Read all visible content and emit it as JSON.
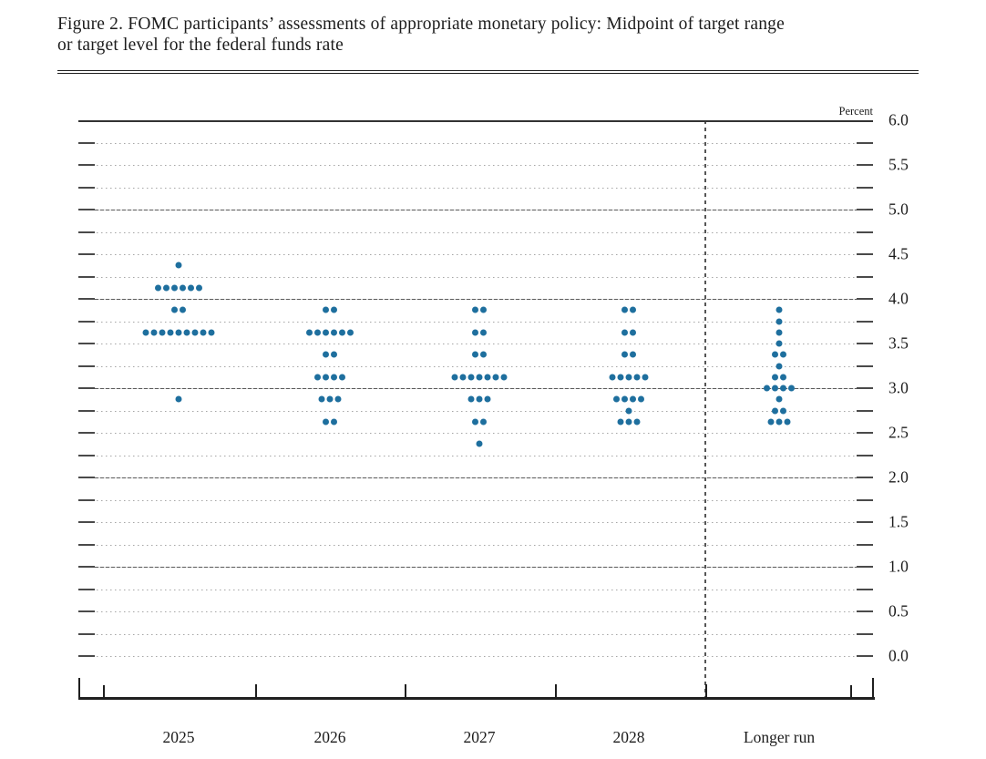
{
  "figure": {
    "title_line1": "Figure 2. FOMC participants’ assessments of appropriate monetary policy: Midpoint of target range",
    "title_line2": "or target level for the federal funds rate"
  },
  "chart_data": {
    "type": "scatter",
    "subtype": "fomc-dot-plot",
    "title": "Figure 2. FOMC participants’ assessments of appropriate monetary policy: Midpoint of target range or target level for the federal funds rate",
    "unit_label": "Percent",
    "categories": [
      "2025",
      "2026",
      "2027",
      "2028",
      "Longer run"
    ],
    "ylim": [
      0.0,
      6.0
    ],
    "y_major_step": 0.5,
    "y_minor_step": 0.25,
    "y_tick_labels": [
      "6.0",
      "5.5",
      "5.0",
      "4.5",
      "4.0",
      "3.5",
      "3.0",
      "2.5",
      "2.0",
      "1.5",
      "1.0",
      "0.5",
      "0.0"
    ],
    "solid_gridline_values": [
      6.0,
      5.0,
      4.0,
      3.0,
      2.0,
      1.0
    ],
    "grid": true,
    "legend": null,
    "separator_before_category": "Longer run",
    "dot_color": "#1e6f9e",
    "series": [
      {
        "category": "2025",
        "dots": [
          {
            "rate": 4.375,
            "count": 1
          },
          {
            "rate": 4.125,
            "count": 6
          },
          {
            "rate": 3.875,
            "count": 2
          },
          {
            "rate": 3.625,
            "count": 9
          },
          {
            "rate": 2.875,
            "count": 1
          }
        ]
      },
      {
        "category": "2026",
        "dots": [
          {
            "rate": 3.875,
            "count": 2
          },
          {
            "rate": 3.625,
            "count": 6
          },
          {
            "rate": 3.375,
            "count": 2
          },
          {
            "rate": 3.125,
            "count": 4
          },
          {
            "rate": 2.875,
            "count": 3
          },
          {
            "rate": 2.625,
            "count": 2
          }
        ]
      },
      {
        "category": "2027",
        "dots": [
          {
            "rate": 3.875,
            "count": 2
          },
          {
            "rate": 3.625,
            "count": 2
          },
          {
            "rate": 3.375,
            "count": 2
          },
          {
            "rate": 3.125,
            "count": 7
          },
          {
            "rate": 2.875,
            "count": 3
          },
          {
            "rate": 2.625,
            "count": 2
          },
          {
            "rate": 2.375,
            "count": 1
          }
        ]
      },
      {
        "category": "2028",
        "dots": [
          {
            "rate": 3.875,
            "count": 2
          },
          {
            "rate": 3.625,
            "count": 2
          },
          {
            "rate": 3.375,
            "count": 2
          },
          {
            "rate": 3.125,
            "count": 5
          },
          {
            "rate": 2.875,
            "count": 4
          },
          {
            "rate": 2.75,
            "count": 1
          },
          {
            "rate": 2.625,
            "count": 3
          }
        ]
      },
      {
        "category": "Longer run",
        "dots": [
          {
            "rate": 3.875,
            "count": 1
          },
          {
            "rate": 3.75,
            "count": 1
          },
          {
            "rate": 3.625,
            "count": 1
          },
          {
            "rate": 3.5,
            "count": 1
          },
          {
            "rate": 3.375,
            "count": 2
          },
          {
            "rate": 3.25,
            "count": 1
          },
          {
            "rate": 3.125,
            "count": 2
          },
          {
            "rate": 3.0,
            "count": 4
          },
          {
            "rate": 2.875,
            "count": 1
          },
          {
            "rate": 2.75,
            "count": 2
          },
          {
            "rate": 2.625,
            "count": 3
          }
        ]
      }
    ]
  }
}
